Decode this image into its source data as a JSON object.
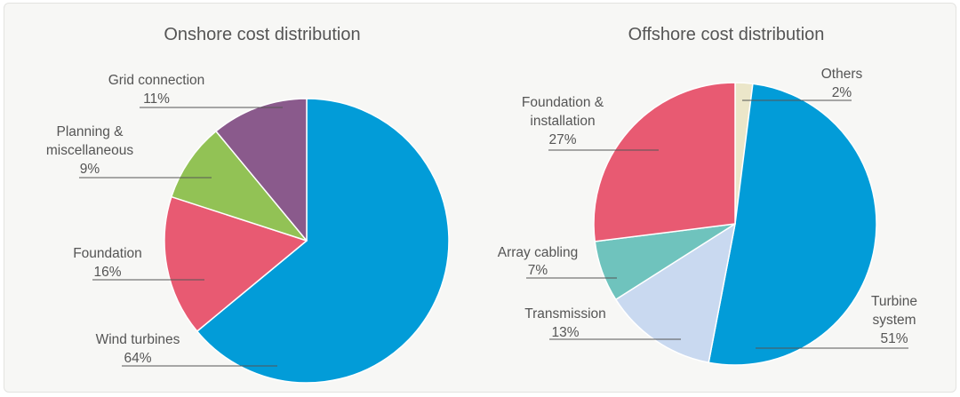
{
  "chart_data": [
    {
      "type": "pie",
      "title": "Onshore cost distribution",
      "slices": [
        {
          "label": "Wind turbines",
          "value": 64,
          "value_text": "64%",
          "color": "#029cd8"
        },
        {
          "label": "Foundation",
          "value": 16,
          "value_text": "16%",
          "color": "#e85a72"
        },
        {
          "label": "Planning & miscellaneous",
          "value": 9,
          "value_text": "9%",
          "color": "#92c255"
        },
        {
          "label": "Grid connection",
          "value": 11,
          "value_text": "11%",
          "color": "#8a5a8c"
        }
      ]
    },
    {
      "type": "pie",
      "title": "Offshore cost distribution",
      "slices": [
        {
          "label": "Others",
          "value": 2,
          "value_text": "2%",
          "color": "#ebe6c9"
        },
        {
          "label": "Turbine system",
          "value": 51,
          "value_text": "51%",
          "color": "#029cd8"
        },
        {
          "label": "Transmission",
          "value": 13,
          "value_text": "13%",
          "color": "#c9d9f0"
        },
        {
          "label": "Array cabling",
          "value": 7,
          "value_text": "7%",
          "color": "#6fc3bd"
        },
        {
          "label": "Foundation & installation",
          "value": 27,
          "value_text": "27%",
          "color": "#e85a72"
        }
      ]
    }
  ]
}
